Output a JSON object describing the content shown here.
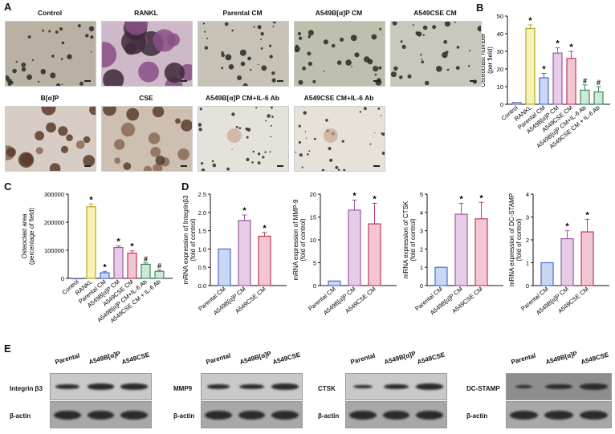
{
  "panels": {
    "A": "A",
    "B": "B",
    "C": "C",
    "D": "D",
    "E": "E"
  },
  "micrographs": {
    "row1": [
      "Control",
      "RANKL",
      "Parental CM",
      "A549B[α]P CM",
      "A549CSE CM"
    ],
    "row2": [
      "B[α]P",
      "CSE",
      "A549B[α]P CM+IL-6 Ab",
      "A549CSE CM+IL-6 Ab"
    ],
    "colors": {
      "control": "#b9b2a4",
      "rankl": "#cdb9c7",
      "parental": "#c6c3b6",
      "bap_cm": "#bfbfb0",
      "cse_cm": "#c9c8bc",
      "bap": "#d8cdc4",
      "cse": "#cdbfb2",
      "bap_il6": "#e5e2dc",
      "cse_il6": "#e6e2da"
    }
  },
  "chart_data": [
    {
      "id": "B",
      "type": "bar",
      "ylabel": "Osteoclast number (per field)",
      "ylim": [
        0,
        50
      ],
      "yticks": [
        0,
        10,
        20,
        30,
        40,
        50
      ],
      "categories": [
        "Control",
        "RANKL",
        "Parental CM",
        "A549B[α]P CM",
        "A549CSE CM",
        "A549B[α]P CM+IL-6 Ab",
        "A549CSE CM + IL-6 Ab"
      ],
      "values": [
        1,
        43,
        15,
        29,
        26,
        8,
        7
      ],
      "errors": [
        0,
        2,
        2.5,
        3,
        4,
        3,
        3
      ],
      "marks": [
        "",
        "*",
        "*",
        "*",
        "*",
        "#",
        "#"
      ],
      "colors": [
        "#d9d9f0",
        "#f7f2b6",
        "#c9d8f2",
        "#e6cce6",
        "#f2c6d2",
        "#cfe8d9",
        "#cfe8d9"
      ],
      "edges": [
        "#6a6aa8",
        "#b6a824",
        "#4f6bd0",
        "#9a5aa0",
        "#c23a5a",
        "#3c8a5a",
        "#3c8a5a"
      ]
    },
    {
      "id": "C",
      "type": "bar",
      "ylabel": "Osteoclast area (percentage of field)",
      "ylim": [
        0,
        300000
      ],
      "yticks": [
        0,
        100000,
        200000,
        300000
      ],
      "categories": [
        "Control",
        "RANKL",
        "Parental CM",
        "A549B[α]P CM",
        "A549CSE CM",
        "A549B[α]P CM+IL-6 Ab",
        "A549CSE CM + IL-6 Ab"
      ],
      "values": [
        0,
        255000,
        20000,
        110000,
        90000,
        50000,
        25000
      ],
      "errors": [
        0,
        10000,
        5000,
        6000,
        8000,
        5000,
        5000
      ],
      "marks": [
        "",
        "*",
        "*",
        "*",
        "*",
        "#",
        "#"
      ],
      "colors": [
        "#d9d9f0",
        "#f7f2b6",
        "#c9d8f2",
        "#e6cce6",
        "#f2c6d2",
        "#cfe8d9",
        "#cfe8d9"
      ],
      "edges": [
        "#6a6aa8",
        "#b6a824",
        "#4f6bd0",
        "#9a5aa0",
        "#c23a5a",
        "#3c8a5a",
        "#3c8a5a"
      ]
    },
    {
      "id": "D1",
      "type": "bar",
      "ylabel": "mRNA expression of Integrinβ3 (fold of control)",
      "ylim": [
        0,
        2.5
      ],
      "yticks": [
        0,
        0.5,
        1.0,
        1.5,
        2.0,
        2.5
      ],
      "ytick_labels": [
        "0.0",
        "0.5",
        "1.0",
        "1.5",
        "2.0",
        "2.5"
      ],
      "categories": [
        "Parental CM",
        "A549B[α]P CM",
        "A549CSE CM"
      ],
      "values": [
        1.0,
        1.78,
        1.35
      ],
      "errors": [
        0,
        0.15,
        0.1
      ],
      "marks": [
        "",
        "*",
        "*"
      ],
      "colors": [
        "#c9d8f2",
        "#e6cce6",
        "#f2c6d2"
      ],
      "edges": [
        "#4f6bd0",
        "#9a5aa0",
        "#c23a5a"
      ]
    },
    {
      "id": "D2",
      "type": "bar",
      "ylabel": "mRNA expression of MMP-9 (fold of control)",
      "ylim": [
        0,
        20
      ],
      "yticks": [
        0,
        5,
        10,
        15,
        20
      ],
      "categories": [
        "Parental CM",
        "A549B[α]P CM",
        "A549CSE CM"
      ],
      "values": [
        1,
        16.5,
        13.5
      ],
      "errors": [
        0,
        2.2,
        4.5
      ],
      "marks": [
        "",
        "*",
        "*"
      ],
      "colors": [
        "#c9d8f2",
        "#e6cce6",
        "#f2c6d2"
      ],
      "edges": [
        "#4f6bd0",
        "#9a5aa0",
        "#c23a5a"
      ]
    },
    {
      "id": "D3",
      "type": "bar",
      "ylabel": "mRNA expression of CTSK (fold of control)",
      "ylim": [
        0,
        5
      ],
      "yticks": [
        0,
        1,
        2,
        3,
        4,
        5
      ],
      "categories": [
        "Parental CM",
        "A549B[α]P CM",
        "A549CSE CM"
      ],
      "values": [
        1,
        3.9,
        3.65
      ],
      "errors": [
        0,
        0.6,
        0.9
      ],
      "marks": [
        "",
        "*",
        "*"
      ],
      "colors": [
        "#c9d8f2",
        "#e6cce6",
        "#f2c6d2"
      ],
      "edges": [
        "#4f6bd0",
        "#9a5aa0",
        "#c23a5a"
      ]
    },
    {
      "id": "D4",
      "type": "bar",
      "ylabel": "mRNA expression of DC-STAMP (fold of control)",
      "ylim": [
        0,
        4
      ],
      "yticks": [
        0,
        1,
        2,
        3,
        4
      ],
      "categories": [
        "Parental CM",
        "A549B[α]P CM",
        "A549CSE CM"
      ],
      "values": [
        1,
        2.05,
        2.35
      ],
      "errors": [
        0,
        0.35,
        0.55
      ],
      "marks": [
        "",
        "*",
        "*"
      ],
      "colors": [
        "#c9d8f2",
        "#e6cce6",
        "#f2c6d2"
      ],
      "edges": [
        "#4f6bd0",
        "#9a5aa0",
        "#c23a5a"
      ]
    }
  ],
  "western": {
    "lanes": [
      "Parental",
      "A549B[α]P",
      "A549CSE"
    ],
    "blots": [
      {
        "target": "Integrin β3",
        "control": "β-actin"
      },
      {
        "target": "MMP9",
        "control": "β-actin"
      },
      {
        "target": "CTSK",
        "control": "β-actin"
      },
      {
        "target": "DC-STAMP",
        "control": "β-actin"
      }
    ]
  }
}
